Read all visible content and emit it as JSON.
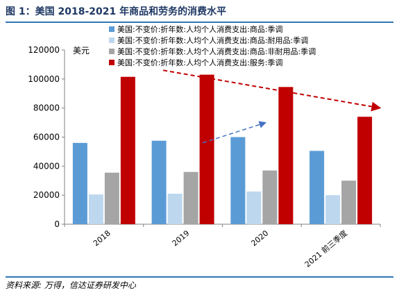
{
  "page": {
    "title": "图 1：美国 2018-2021 年商品和劳务的消费水平",
    "source": "资料来源: 万得，信达证券研发中心"
  },
  "colors": {
    "rule": "#2e75b6",
    "title": "#1f3864",
    "series": [
      "#5b9bd5",
      "#bdd7ee",
      "#a5a5a5",
      "#c00000"
    ],
    "arrow_blue": "#4472c4",
    "arrow_red": "#c00000"
  },
  "chart_data": {
    "type": "bar",
    "ylabel": "美元",
    "ylim": [
      0,
      120000
    ],
    "yticks": [
      0,
      20000,
      40000,
      60000,
      80000,
      100000,
      120000
    ],
    "categories": [
      "2018",
      "2019",
      "2020",
      "2021 前三季度"
    ],
    "series": [
      {
        "name": "美国:不变价:折年数:人均个人消费支出:商品:季调",
        "values": [
          56000,
          57500,
          60000,
          50500
        ]
      },
      {
        "name": "美国:不变价:折年数:人均个人消费支出:商品:耐用品:季调",
        "values": [
          20500,
          21000,
          22500,
          20000
        ]
      },
      {
        "name": "美国:不变价:折年数:人均个人消费支出:商品:非耐用品:季调",
        "values": [
          35500,
          36000,
          37000,
          30000
        ]
      },
      {
        "name": "美国:不变价:折年数:人均个人消费支出:服务:季调",
        "values": [
          101500,
          103000,
          94500,
          74000
        ]
      }
    ],
    "legend_position": "top",
    "grid": false,
    "annotations": [
      {
        "type": "arrow",
        "color": "blue",
        "from": [
          1.25,
          56000
        ],
        "to": [
          2.05,
          70000
        ]
      },
      {
        "type": "arrow",
        "color": "red",
        "from": [
          0.75,
          106000
        ],
        "to": [
          3.5,
          80000
        ]
      }
    ]
  }
}
